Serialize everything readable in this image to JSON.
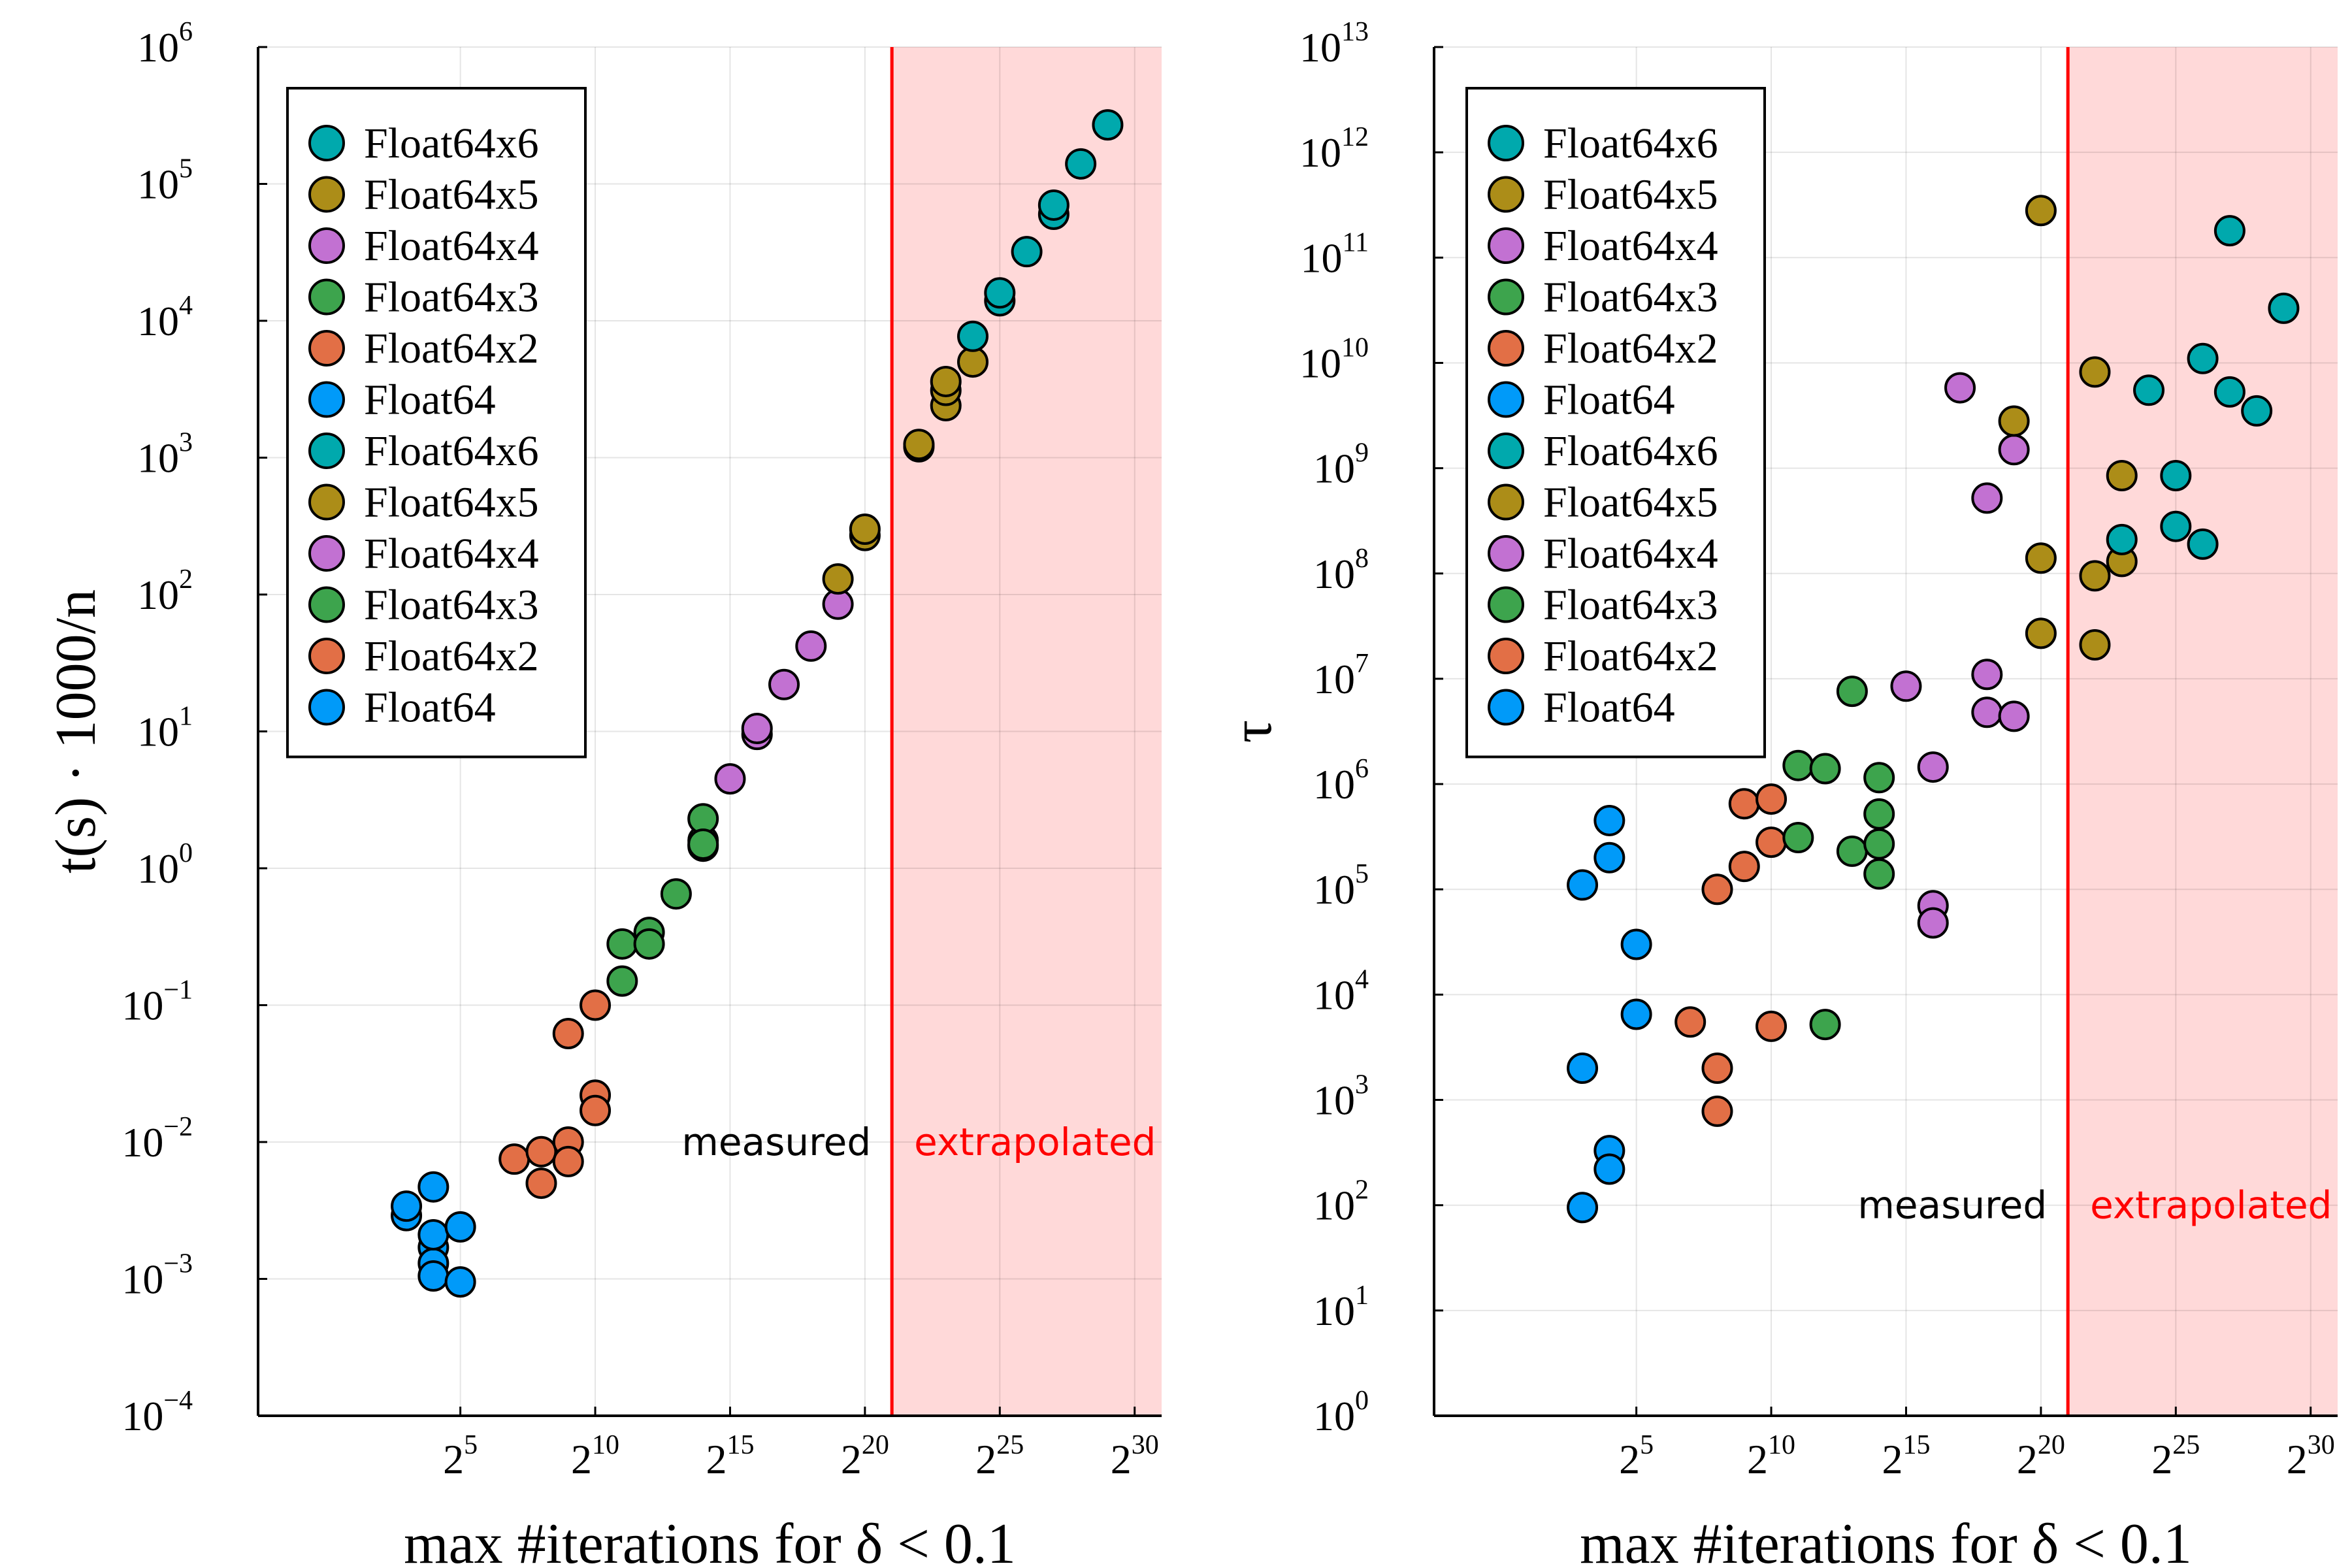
{
  "colors": {
    "Float64": "#009af9",
    "Float64x2": "#e26f46",
    "Float64x3": "#3da44d",
    "Float64x4": "#c271d2",
    "Float64x5": "#ac8d18",
    "Float64x6": "#00a9ad",
    "threshold_line": "#ff0000",
    "extrapolated_fill": "#ffd9d9"
  },
  "legend_entries": [
    "Float64x6",
    "Float64x5",
    "Float64x4",
    "Float64x3",
    "Float64x2",
    "Float64",
    "Float64x6",
    "Float64x5",
    "Float64x4",
    "Float64x3",
    "Float64x2",
    "Float64"
  ],
  "chart_data": [
    {
      "type": "scatter",
      "xlabel": "max #iterations for δ < 0.1",
      "ylabel": "t(s) · 1000/n",
      "xscale": "log2",
      "yscale": "log10",
      "xlim_log2": [
        -2.5,
        31
      ],
      "ylim_log10": [
        -4,
        6
      ],
      "x_tick_exponents": [
        5,
        10,
        15,
        20,
        25,
        30
      ],
      "y_tick_exponents": [
        -4,
        -3,
        -2,
        -1,
        0,
        1,
        2,
        3,
        4,
        5,
        6
      ],
      "threshold_log2": 21,
      "legend_position": "top-left",
      "region_labels": {
        "left": "measured",
        "right": "extrapolated"
      },
      "series": [
        {
          "name": "Float64",
          "log2_x": [
            3,
            3,
            4,
            4,
            4,
            4,
            4,
            5,
            5
          ],
          "y": [
            0.0029,
            0.0034,
            0.0047,
            0.0017,
            0.0013,
            0.0021,
            0.00105,
            0.0024,
            0.00095
          ]
        },
        {
          "name": "Float64x2",
          "log2_x": [
            7,
            8,
            8,
            9,
            9,
            9,
            10,
            10,
            10
          ],
          "y": [
            0.0075,
            0.0085,
            0.005,
            0.01,
            0.0072,
            0.062,
            0.1,
            0.022,
            0.017
          ]
        },
        {
          "name": "Float64x3",
          "log2_x": [
            11,
            11,
            12,
            12,
            13,
            14,
            14,
            14,
            14
          ],
          "y": [
            0.28,
            0.15,
            0.34,
            0.28,
            0.65,
            1.45,
            1.6,
            2.3,
            1.5
          ]
        },
        {
          "name": "Float64x4",
          "log2_x": [
            15,
            16,
            16,
            17,
            18,
            19
          ],
          "y": [
            4.5,
            9.5,
            10.5,
            22,
            42,
            85
          ]
        },
        {
          "name": "Float64x5",
          "log2_x": [
            19,
            20,
            20,
            22,
            22,
            23,
            23,
            23,
            24
          ],
          "y": [
            130,
            270,
            300,
            1200,
            1250,
            2400,
            3100,
            3600,
            5000
          ]
        },
        {
          "name": "Float64x6",
          "log2_x": [
            24,
            25,
            25,
            26,
            27,
            27,
            28,
            29
          ],
          "y": [
            7700,
            14000,
            16000,
            32000,
            60000,
            70000,
            140000,
            270000
          ]
        }
      ]
    },
    {
      "type": "scatter",
      "xlabel": "max #iterations for δ < 0.1",
      "ylabel": "τ",
      "xscale": "log2",
      "yscale": "log10",
      "xlim_log2": [
        -2.5,
        31
      ],
      "ylim_log10": [
        0,
        13
      ],
      "x_tick_exponents": [
        5,
        10,
        15,
        20,
        25,
        30
      ],
      "y_tick_exponents": [
        0,
        1,
        2,
        3,
        4,
        5,
        6,
        7,
        8,
        9,
        10,
        11,
        12,
        13
      ],
      "threshold_log2": 21,
      "legend_position": "top-left",
      "region_labels": {
        "left": "measured",
        "right": "extrapolated"
      },
      "series": [
        {
          "name": "Float64",
          "log2_x": [
            3,
            3,
            3,
            4,
            4,
            4,
            4,
            5,
            5
          ],
          "y": [
            110000,
            2000,
            95,
            450000,
            200000,
            330,
            220,
            30000,
            6500
          ]
        },
        {
          "name": "Float64x2",
          "log2_x": [
            7,
            8,
            8,
            8,
            9,
            9,
            10,
            10,
            10
          ],
          "y": [
            5500,
            100000,
            2000,
            780,
            650000,
            165000,
            720000,
            280000,
            5000
          ]
        },
        {
          "name": "Float64x3",
          "log2_x": [
            11,
            11,
            12,
            12,
            13,
            13,
            14,
            14,
            14,
            14
          ],
          "y": [
            1500000,
            310000,
            1400000,
            5200,
            7600000,
            230000,
            1150000,
            520000,
            270000,
            140000
          ]
        },
        {
          "name": "Float64x4",
          "log2_x": [
            15,
            16,
            16,
            16,
            17,
            18,
            18,
            18,
            19,
            19
          ],
          "y": [
            8500000,
            1450000,
            70000,
            48000,
            5800000000,
            520000000,
            11000000,
            4800000,
            4400000,
            1500000000
          ]
        },
        {
          "name": "Float64x5",
          "log2_x": [
            19,
            20,
            20,
            20,
            22,
            22,
            22,
            23,
            23
          ],
          "y": [
            2800000000,
            280000000000,
            140000000,
            27000000,
            8200000000,
            95000000,
            21000000,
            850000000,
            130000000
          ]
        },
        {
          "name": "Float64x6",
          "log2_x": [
            23,
            24,
            25,
            25,
            26,
            26,
            27,
            27,
            28,
            29
          ],
          "y": [
            210000000,
            5500000000,
            850000000,
            280000000,
            11000000000,
            190000000,
            180000000000,
            5300000000,
            3500000000,
            33000000000
          ]
        }
      ]
    }
  ]
}
